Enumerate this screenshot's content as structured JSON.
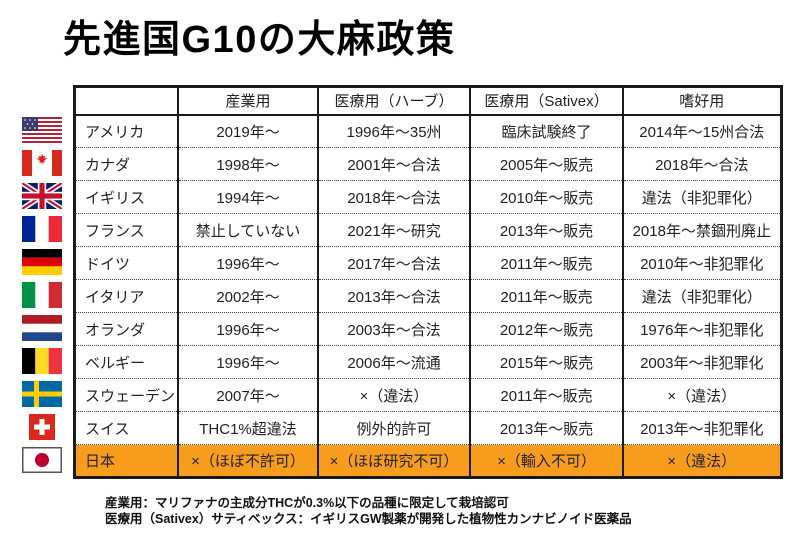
{
  "title": "先進国G10の大麻政策",
  "table": {
    "columns": [
      "",
      "産業用",
      "医療用（ハーブ）",
      "医療用（Sativex）",
      "嗜好用"
    ],
    "highlight_color": "#F89C1E",
    "rows": [
      {
        "flag": "usa",
        "country": "アメリカ",
        "industrial": "2019年～",
        "medical_herb": "1996年～35州",
        "medical_sativex": "臨床試験終了",
        "recreational": "2014年～15州合法",
        "highlight": false
      },
      {
        "flag": "canada",
        "country": "カナダ",
        "industrial": "1998年～",
        "medical_herb": "2001年～合法",
        "medical_sativex": "2005年～販売",
        "recreational": "2018年～合法",
        "highlight": false
      },
      {
        "flag": "uk",
        "country": "イギリス",
        "industrial": "1994年～",
        "medical_herb": "2018年～合法",
        "medical_sativex": "2010年～販売",
        "recreational": "違法（非犯罪化）",
        "highlight": false
      },
      {
        "flag": "france",
        "country": "フランス",
        "industrial": "禁止していない",
        "medical_herb": "2021年～研究",
        "medical_sativex": "2013年～販売",
        "recreational": "2018年～禁錮刑廃止",
        "highlight": false
      },
      {
        "flag": "germany",
        "country": "ドイツ",
        "industrial": "1996年～",
        "medical_herb": "2017年～合法",
        "medical_sativex": "2011年～販売",
        "recreational": "2010年～非犯罪化",
        "highlight": false
      },
      {
        "flag": "italy",
        "country": "イタリア",
        "industrial": "2002年～",
        "medical_herb": "2013年～合法",
        "medical_sativex": "2011年～販売",
        "recreational": "違法（非犯罪化）",
        "highlight": false
      },
      {
        "flag": "netherlands",
        "country": "オランダ",
        "industrial": "1996年～",
        "medical_herb": "2003年～合法",
        "medical_sativex": "2012年～販売",
        "recreational": "1976年～非犯罪化",
        "highlight": false
      },
      {
        "flag": "belgium",
        "country": "ベルギー",
        "industrial": "1996年～",
        "medical_herb": "2006年～流通",
        "medical_sativex": "2015年～販売",
        "recreational": "2003年～非犯罪化",
        "highlight": false
      },
      {
        "flag": "sweden",
        "country": "スウェーデン",
        "industrial": "2007年～",
        "medical_herb": "×（違法）",
        "medical_sativex": "2011年～販売",
        "recreational": "×（違法）",
        "highlight": false
      },
      {
        "flag": "switzerland",
        "country": "スイス",
        "industrial": "THC1%超違法",
        "medical_herb": "例外的許可",
        "medical_sativex": "2013年～販売",
        "recreational": "2013年～非犯罪化",
        "highlight": false
      },
      {
        "flag": "japan",
        "country": "日本",
        "industrial": "×（ほぼ不許可）",
        "medical_herb": "×（ほぼ研究不可）",
        "medical_sativex": "×（輸入不可）",
        "recreational": "×（違法）",
        "highlight": true
      }
    ]
  },
  "notes": [
    "産業用：マリファナの主成分THCが0.3%以下の品種に限定して栽培認可",
    "医療用（Sativex）サティベックス：イギリスGW製薬が開発した植物性カンナビノイド医薬品"
  ]
}
